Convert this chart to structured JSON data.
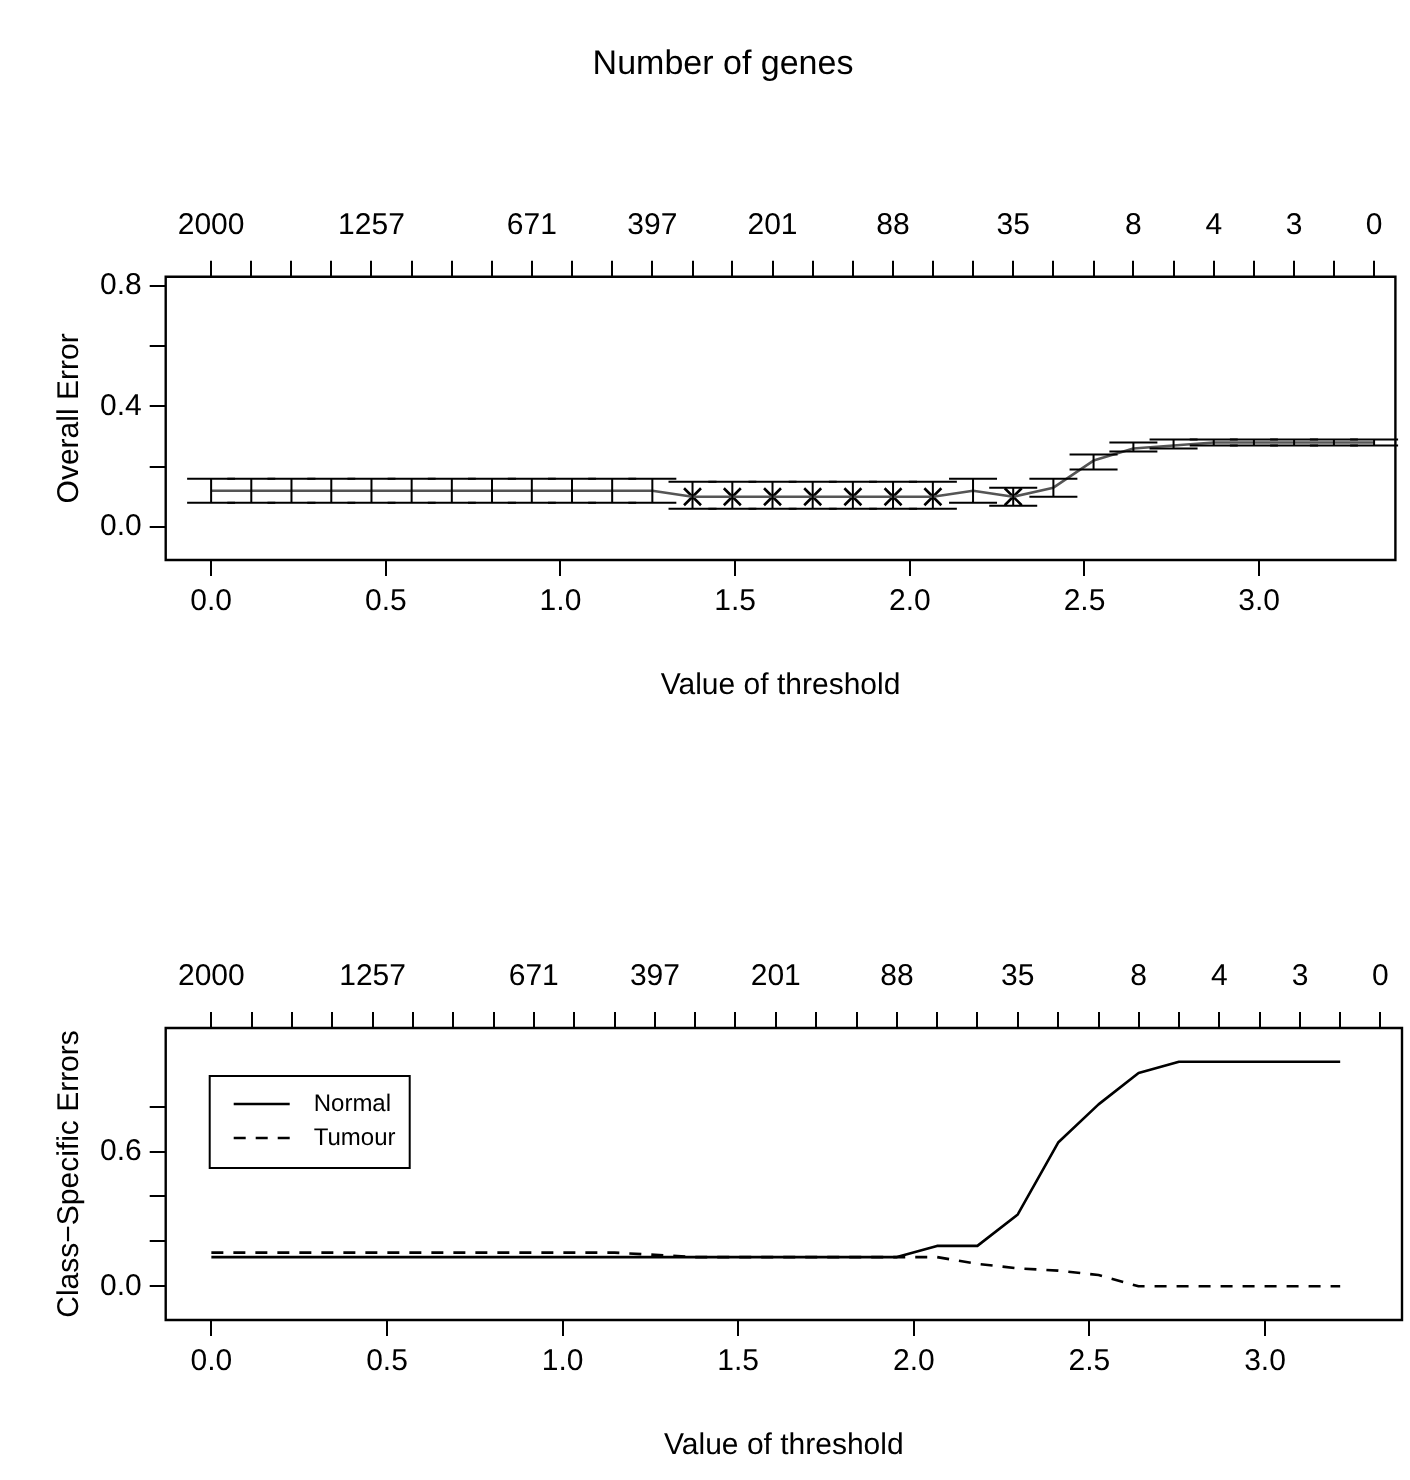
{
  "chart_data": [
    {
      "type": "line",
      "title": "Number of genes",
      "xlabel": "Value of threshold",
      "ylabel": "Overall Error",
      "x": [
        0,
        0.115,
        0.23,
        0.344,
        0.459,
        0.574,
        0.689,
        0.804,
        0.918,
        1.033,
        1.148,
        1.263,
        1.378,
        1.492,
        1.607,
        1.722,
        1.837,
        1.952,
        2.066,
        2.181,
        2.296,
        2.411,
        2.526,
        2.64,
        2.755,
        2.87,
        2.985,
        3.1,
        3.214,
        3.329
      ],
      "annotations": [
        {
          "text": "2000",
          "x": 0
        },
        {
          "text": "1257",
          "x": 0.459
        },
        {
          "text": "671",
          "x": 0.918
        },
        {
          "text": "397",
          "x": 1.263
        },
        {
          "text": "201",
          "x": 1.607
        },
        {
          "text": "88",
          "x": 1.952
        },
        {
          "text": "35",
          "x": 2.296
        },
        {
          "text": "8",
          "x": 2.64
        },
        {
          "text": "4",
          "x": 2.87
        },
        {
          "text": "3",
          "x": 3.1
        },
        {
          "text": "0",
          "x": 3.329
        }
      ],
      "series": [
        {
          "color": "#555555",
          "values": [
            0.12,
            0.12,
            0.12,
            0.12,
            0.12,
            0.12,
            0.12,
            0.12,
            0.12,
            0.12,
            0.12,
            0.12,
            0.1,
            0.1,
            0.1,
            0.1,
            0.1,
            0.1,
            0.1,
            0.12,
            0.1,
            0.13,
            0.22,
            0.26,
            0.27,
            0.28,
            0.28,
            0.28,
            0.28,
            0.28
          ],
          "errors": [
            [
              0.08,
              0.16
            ],
            [
              0.08,
              0.16
            ],
            [
              0.08,
              0.16
            ],
            [
              0.08,
              0.16
            ],
            [
              0.08,
              0.16
            ],
            [
              0.08,
              0.16
            ],
            [
              0.08,
              0.16
            ],
            [
              0.08,
              0.16
            ],
            [
              0.08,
              0.16
            ],
            [
              0.08,
              0.16
            ],
            [
              0.08,
              0.16
            ],
            [
              0.08,
              0.16
            ],
            [
              0.06,
              0.15
            ],
            [
              0.06,
              0.15
            ],
            [
              0.06,
              0.15
            ],
            [
              0.06,
              0.15
            ],
            [
              0.06,
              0.15
            ],
            [
              0.06,
              0.15
            ],
            [
              0.06,
              0.15
            ],
            [
              0.08,
              0.16
            ],
            [
              0.07,
              0.13
            ],
            [
              0.1,
              0.16
            ],
            [
              0.19,
              0.24
            ],
            [
              0.25,
              0.28
            ],
            [
              0.26,
              0.29
            ],
            [
              0.27,
              0.29
            ],
            [
              0.27,
              0.29
            ],
            [
              0.27,
              0.29
            ],
            [
              0.27,
              0.29
            ],
            [
              0.27,
              0.29
            ]
          ]
        },
        {
          "type": "scatter",
          "marker": "cross",
          "color": "#000000",
          "x": [
            1.378,
            1.492,
            1.607,
            1.722,
            1.837,
            1.952,
            2.066,
            2.296
          ],
          "values": [
            0.1,
            0.1,
            0.1,
            0.1,
            0.1,
            0.1,
            0.1,
            0.1
          ]
        }
      ],
      "xlim": [
        -0.13,
        3.39
      ],
      "xticks": [
        {
          "value": 0,
          "label": "0.0"
        },
        0.5,
        {
          "value": 1,
          "label": "1.0"
        },
        1.5,
        {
          "value": 2,
          "label": "2.0"
        },
        2.5,
        {
          "value": 3,
          "label": "3.0"
        }
      ],
      "ylim": [
        -0.11,
        0.83
      ],
      "yticks": [
        {
          "value": 0,
          "label": "0.0"
        },
        {
          "value": 0.2,
          "label": null
        },
        0.4,
        {
          "value": 0.6,
          "label": null
        },
        0.8
      ],
      "marker": "none",
      "line_style": "solid"
    },
    {
      "type": "line",
      "xlabel": "Value of threshold",
      "ylabel": "Class−Specific Errors",
      "x": [
        0,
        0.115,
        0.23,
        0.344,
        0.459,
        0.574,
        0.689,
        0.804,
        0.918,
        1.033,
        1.148,
        1.263,
        1.378,
        1.492,
        1.607,
        1.722,
        1.837,
        1.952,
        2.066,
        2.181,
        2.296,
        2.411,
        2.526,
        2.64,
        2.755,
        2.87,
        2.985,
        3.1,
        3.214
      ],
      "annotations": [
        {
          "text": "2000",
          "x": 0
        },
        {
          "text": "1257",
          "x": 0.459
        },
        {
          "text": "671",
          "x": 0.918
        },
        {
          "text": "397",
          "x": 1.263
        },
        {
          "text": "201",
          "x": 1.607
        },
        {
          "text": "88",
          "x": 1.952
        },
        {
          "text": "35",
          "x": 2.296
        },
        {
          "text": "8",
          "x": 2.64
        },
        {
          "text": "4",
          "x": 2.87
        },
        {
          "text": "3",
          "x": 3.1
        },
        "0"
      ],
      "series": [
        {
          "name": "Normal",
          "color": "#000000",
          "line_style": "solid",
          "values": [
            0.13,
            0.13,
            0.13,
            0.13,
            0.13,
            0.13,
            0.13,
            0.13,
            0.13,
            0.13,
            0.13,
            0.13,
            0.13,
            0.13,
            0.13,
            0.13,
            0.13,
            0.13,
            0.18,
            0.18,
            0.32,
            0.64,
            0.81,
            0.95,
            1,
            1,
            1,
            1,
            1
          ]
        },
        {
          "name": "Tumour",
          "color": "#000000",
          "line_style": "dashed",
          "values": [
            0.15,
            0.15,
            0.15,
            0.15,
            0.15,
            0.15,
            0.15,
            0.15,
            0.15,
            0.15,
            0.15,
            0.14,
            0.13,
            0.13,
            0.13,
            0.13,
            0.13,
            0.13,
            0.13,
            0.1,
            0.08,
            0.07,
            0.05,
            0,
            0,
            0,
            0,
            0,
            0
          ]
        }
      ],
      "xlim": [
        -0.13,
        3.39
      ],
      "xticks": [
        {
          "value": 0,
          "label": "0.0"
        },
        0.5,
        {
          "value": 1,
          "label": "1.0"
        },
        1.5,
        {
          "value": 2,
          "label": "2.0"
        },
        2.5,
        {
          "value": 3,
          "label": "3.0"
        }
      ],
      "ylim": [
        -0.15,
        1.15
      ],
      "yticks": [
        {
          "value": 0,
          "label": "0.0"
        },
        {
          "value": 0.2,
          "label": null
        },
        {
          "value": 0.4,
          "label": null
        },
        0.6,
        {
          "value": 0.8,
          "label": null
        }
      ],
      "legend": "top left",
      "marker": "none"
    }
  ]
}
